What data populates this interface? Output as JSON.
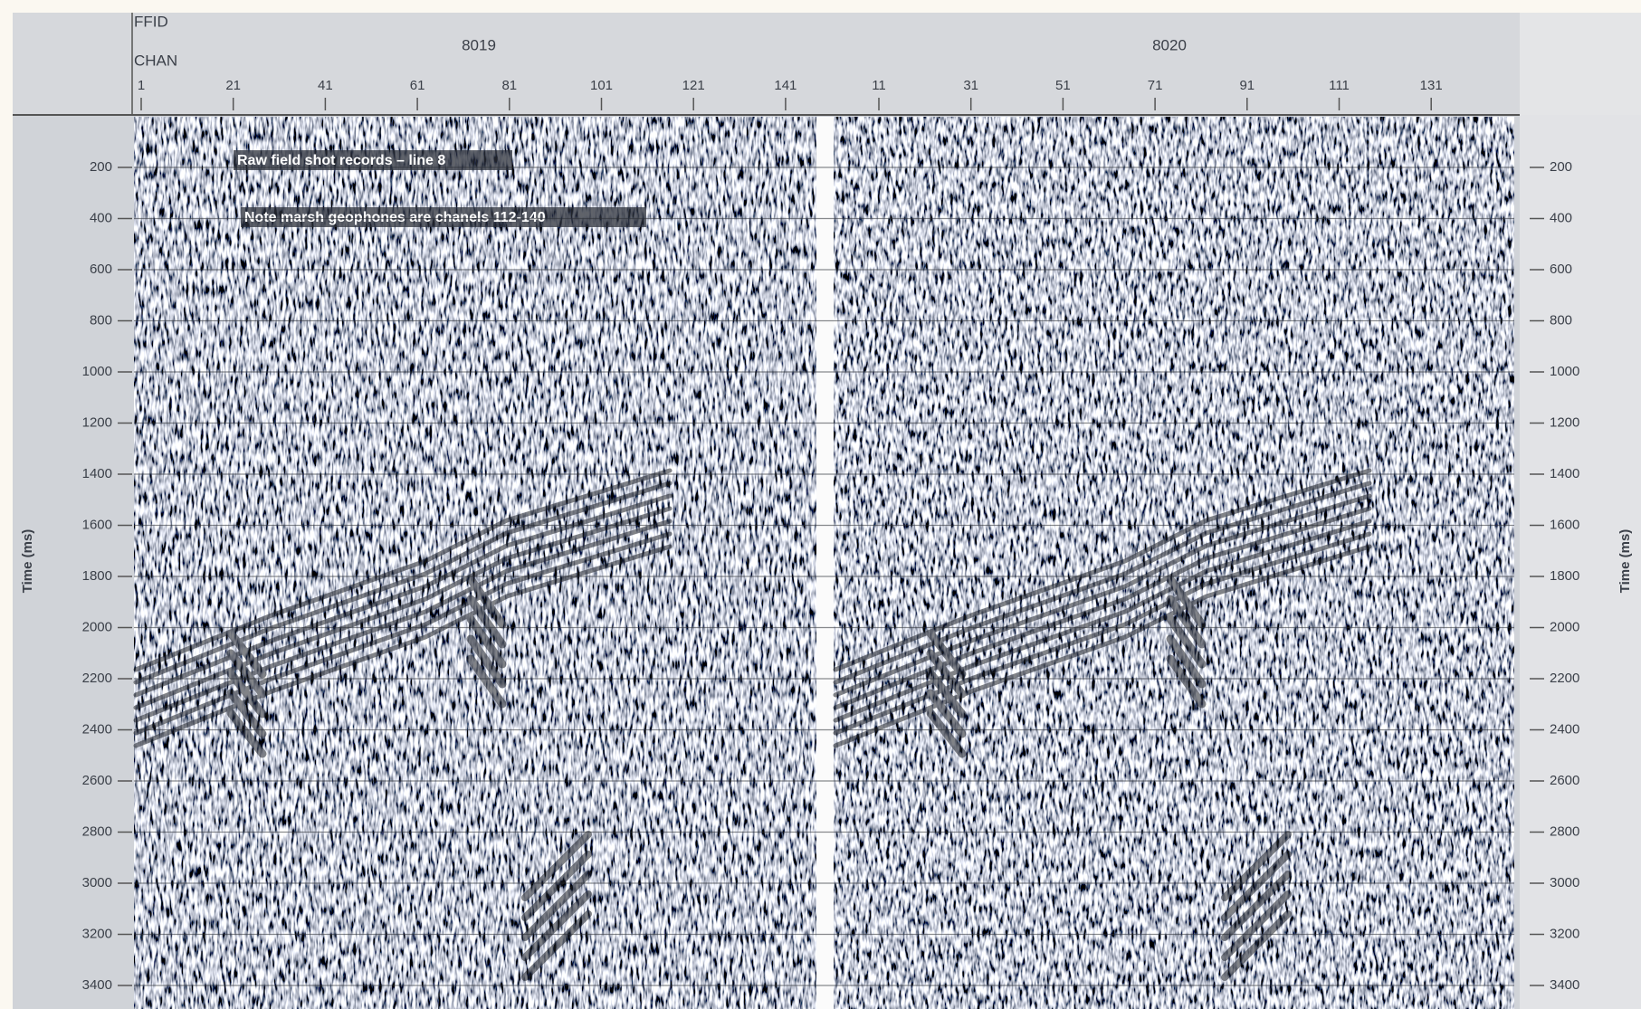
{
  "header": {
    "ffid_label": "FFID",
    "chan_label": "CHAN"
  },
  "records": [
    {
      "ffid": "8019",
      "channels": [
        1,
        21,
        41,
        61,
        81,
        101,
        121,
        141
      ]
    },
    {
      "ffid": "8020",
      "channels": [
        11,
        31,
        51,
        71,
        91,
        111,
        131
      ]
    }
  ],
  "time_axis": {
    "label": "Time (ms)",
    "ticks": [
      200,
      400,
      600,
      800,
      1000,
      1200,
      1400,
      1600,
      1800,
      2000,
      2200,
      2400,
      2600,
      2800,
      3000,
      3200,
      3400
    ]
  },
  "annotations": [
    "Raw field shot records – line 8",
    "Note marsh geophones are chanels 112-140"
  ]
}
